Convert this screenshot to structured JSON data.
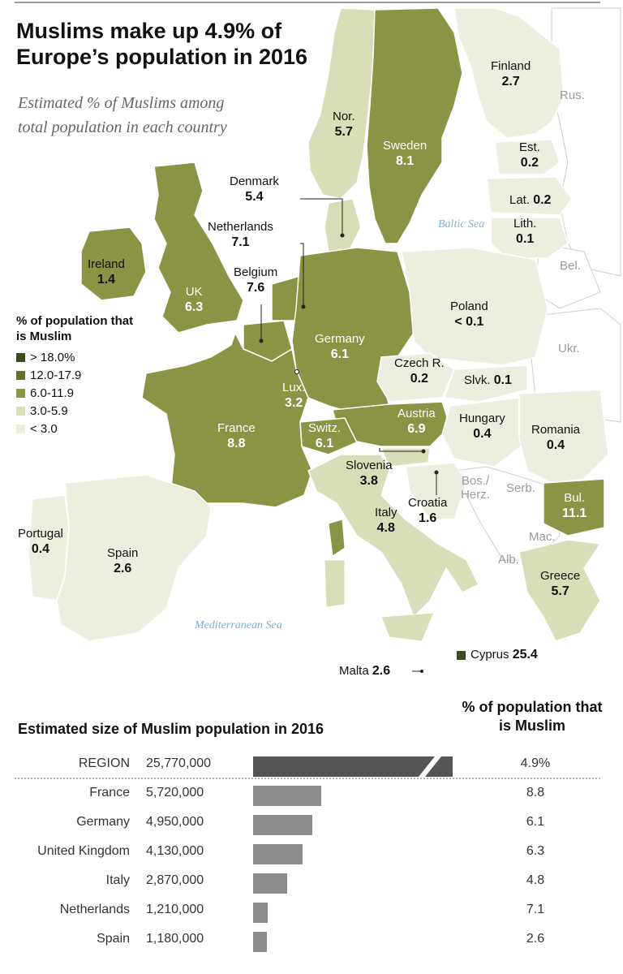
{
  "title": "Muslims make up 4.9% of Europe’s population in 2016",
  "subtitle": "Estimated % of Muslims among total population in each country",
  "legend": {
    "title": "% of population that is Muslim",
    "items": [
      {
        "label": "> 18.0%",
        "color": "#3d4a1c"
      },
      {
        "label": "12.0-17.9",
        "color": "#66702e"
      },
      {
        "label": "6.0-11.9",
        "color": "#8a9444"
      },
      {
        "label": "3.0-5.9",
        "color": "#d9ddb8"
      },
      {
        "label": "< 3.0",
        "color": "#eceee0"
      }
    ]
  },
  "countries": {
    "finland": {
      "name": "Finland",
      "value": "2.7"
    },
    "norway": {
      "name": "Nor.",
      "value": "5.7"
    },
    "sweden": {
      "name": "Sweden",
      "value": "8.1"
    },
    "estonia": {
      "name": "Est.",
      "value": "0.2"
    },
    "latvia": {
      "name": "Lat.",
      "value": "0.2"
    },
    "lithuania": {
      "name": "Lith.",
      "value": "0.1"
    },
    "denmark": {
      "name": "Denmark",
      "value": "5.4"
    },
    "netherlands": {
      "name": "Netherlands",
      "value": "7.1"
    },
    "ireland": {
      "name": "Ireland",
      "value": "1.4"
    },
    "belgium": {
      "name": "Belgium",
      "value": "7.6"
    },
    "uk": {
      "name": "UK",
      "value": "6.3"
    },
    "poland": {
      "name": "Poland",
      "value": "< 0.1"
    },
    "germany": {
      "name": "Germany",
      "value": "6.1"
    },
    "czech": {
      "name": "Czech R.",
      "value": "0.2"
    },
    "slovakia": {
      "name": "Slvk.",
      "value": "0.1"
    },
    "luxembourg": {
      "name": "Lux.",
      "value": "3.2"
    },
    "austria": {
      "name": "Austria",
      "value": "6.9"
    },
    "hungary": {
      "name": "Hungary",
      "value": "0.4"
    },
    "romania": {
      "name": "Romania",
      "value": "0.4"
    },
    "france": {
      "name": "France",
      "value": "8.8"
    },
    "switzerland": {
      "name": "Switz.",
      "value": "6.1"
    },
    "slovenia": {
      "name": "Slovenia",
      "value": "3.8"
    },
    "croatia": {
      "name": "Croatia",
      "value": "1.6"
    },
    "italy": {
      "name": "Italy",
      "value": "4.8"
    },
    "bulgaria": {
      "name": "Bul.",
      "value": "11.1"
    },
    "portugal": {
      "name": "Portugal",
      "value": "0.4"
    },
    "spain": {
      "name": "Spain",
      "value": "2.6"
    },
    "greece": {
      "name": "Greece",
      "value": "5.7"
    },
    "cyprus": {
      "name": "Cyprus",
      "value": "25.4"
    },
    "malta": {
      "name": "Malta",
      "value": "2.6"
    }
  },
  "greyed_labels": {
    "russia": "Rus.",
    "belarus": "Bel.",
    "ukraine": "Ukr.",
    "bosnia": "Bos./ Herz.",
    "serbia": "Serb.",
    "macedonia": "Mac.",
    "albania": "Alb."
  },
  "seas": {
    "baltic": "Baltic Sea",
    "mediterranean": "Mediterranean Sea"
  },
  "chart_data": {
    "type": "bar",
    "title": "Estimated size of Muslim population in 2016",
    "column_title": "% of population that is Muslim",
    "categories": [
      "REGION",
      "France",
      "Germany",
      "United Kingdom",
      "Italy",
      "Netherlands",
      "Spain"
    ],
    "series": [
      {
        "values": [
          25770000,
          5720000,
          4950000,
          4130000,
          2870000,
          1210000,
          1180000
        ]
      }
    ],
    "value_labels": [
      "25,770,000",
      "5,720,000",
      "4,950,000",
      "4,130,000",
      "2,870,000",
      "1,210,000",
      "1,180,000"
    ],
    "percent_labels": [
      "4.9%",
      "8.8",
      "6.1",
      "6.3",
      "4.8",
      "7.1",
      "2.6"
    ],
    "region_bar_broken": true,
    "colors": {
      "region": "#555555",
      "country": "#8c8c8c"
    }
  }
}
